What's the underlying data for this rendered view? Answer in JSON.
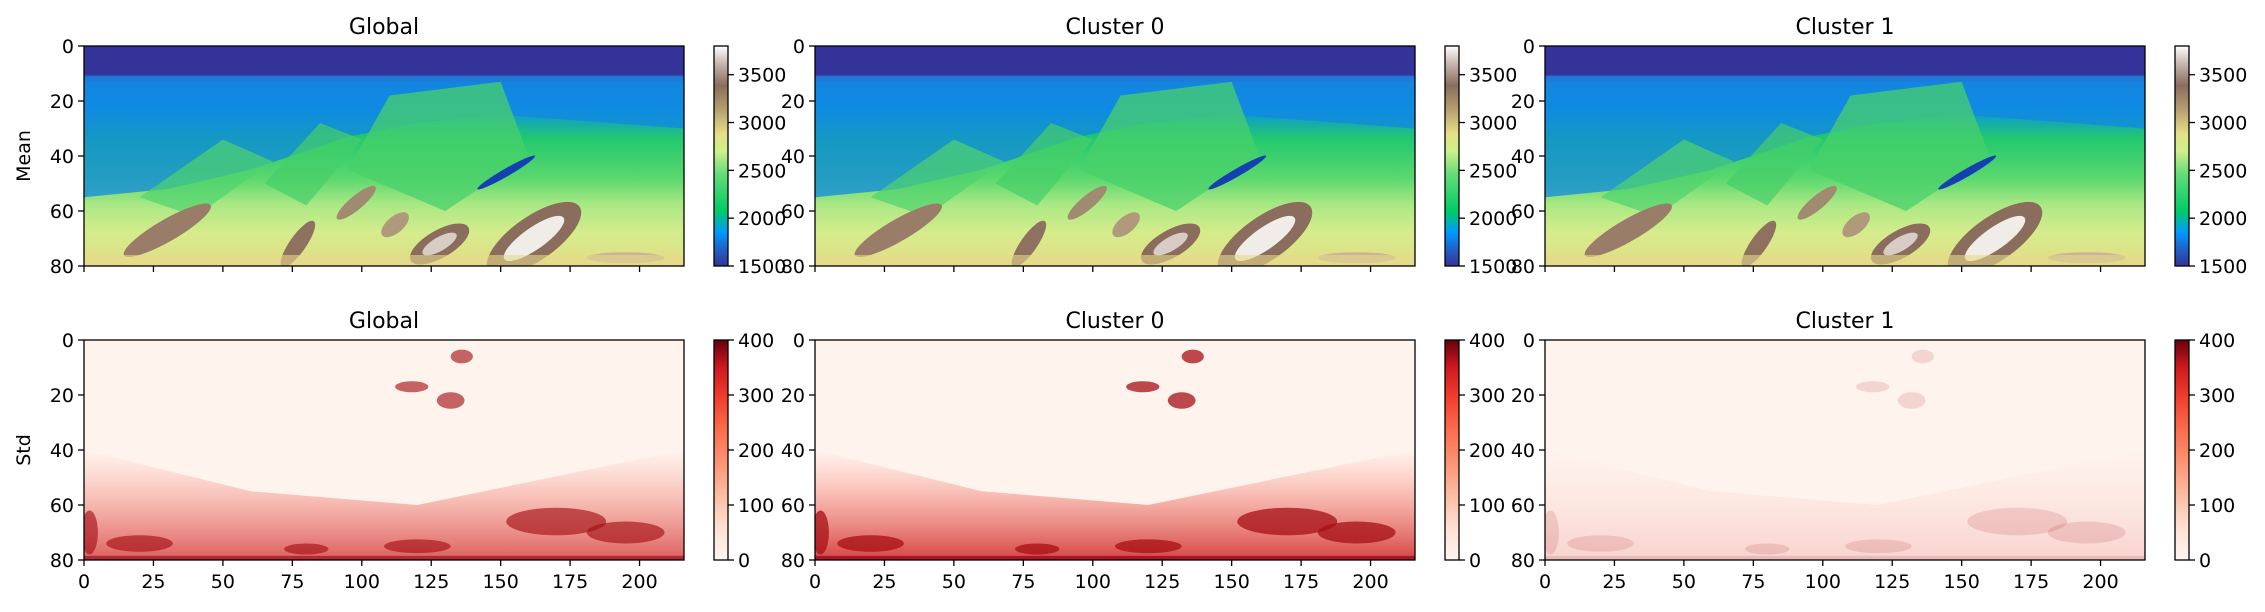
{
  "chart_data": {
    "type": "heatmap",
    "rows": [
      {
        "row_label": "Mean",
        "colormap": "terrain",
        "colorbar_range": [
          1500,
          3800
        ],
        "colorbar_ticks": [
          1500,
          2000,
          2500,
          3000,
          3500
        ]
      },
      {
        "row_label": "Std",
        "colormap": "reds",
        "colorbar_range": [
          0,
          400
        ],
        "colorbar_ticks": [
          0,
          100,
          200,
          300,
          400
        ]
      }
    ],
    "panels": [
      {
        "row": 0,
        "col": 0,
        "title": "Global"
      },
      {
        "row": 0,
        "col": 1,
        "title": "Cluster 0"
      },
      {
        "row": 0,
        "col": 2,
        "title": "Cluster 1"
      },
      {
        "row": 1,
        "col": 0,
        "title": "Global"
      },
      {
        "row": 1,
        "col": 1,
        "title": "Cluster 0"
      },
      {
        "row": 1,
        "col": 2,
        "title": "Cluster 1"
      }
    ],
    "xlim": [
      0,
      216
    ],
    "ylim": [
      80,
      0
    ],
    "x_ticks": [
      0,
      25,
      50,
      75,
      100,
      125,
      150,
      175,
      200
    ],
    "y_ticks": [
      0,
      20,
      40,
      60,
      80
    ],
    "x_tick_labels_on": "bottom row only",
    "grid": false,
    "legend": "colorbar right of each panel"
  }
}
